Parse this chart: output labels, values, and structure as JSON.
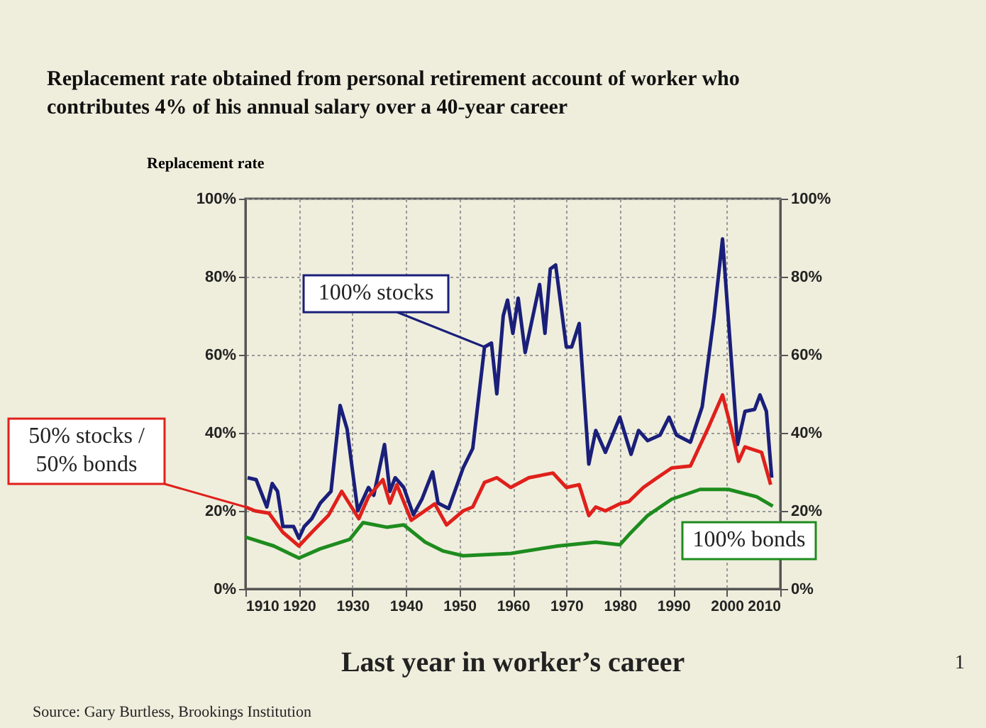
{
  "chart_data": {
    "type": "line",
    "title": "Replacement rate obtained from personal retirement account of worker who contributes 4% of his annual salary over a 40-year career",
    "ylabel": "Replacement rate",
    "xlabel": "Last year in worker’s career",
    "annotations": [
      "Source: Gary Burtless, Brookings Institution",
      "1"
    ],
    "xlim": [
      1910,
      2010
    ],
    "xticks": [
      1910,
      1920,
      1930,
      1940,
      1950,
      1960,
      1970,
      1980,
      1990,
      2000,
      2010
    ],
    "ylim": [
      0,
      100
    ],
    "yticks": [
      {
        "value": 0,
        "label": "0%"
      },
      {
        "value": 20,
        "label": "20%"
      },
      {
        "value": 40,
        "label": "40%"
      },
      {
        "value": 60,
        "label": "60%"
      },
      {
        "value": 80,
        "label": "80%"
      },
      {
        "value": 100,
        "label": "100%"
      }
    ],
    "y2lim": [
      0,
      100
    ],
    "y2ticks": [
      {
        "value": 0,
        "label": "0%"
      },
      {
        "value": 20,
        "label": "20%"
      },
      {
        "value": 40,
        "label": "40%"
      },
      {
        "value": 60,
        "label": "60%"
      },
      {
        "value": 80,
        "label": "80%"
      },
      {
        "value": 100,
        "label": "100%"
      }
    ],
    "grid": true,
    "line_style": "solid",
    "marker": "none",
    "series": [
      {
        "name": "100% stocks",
        "color": "#1a1f7a",
        "x": [
          1910.4,
          1912,
          1914,
          1915,
          1916,
          1917,
          1919,
          1920,
          1921,
          1922.4,
          1924,
          1926,
          1927.7,
          1929,
          1931,
          1933,
          1934,
          1936,
          1937,
          1938,
          1939.6,
          1941.4,
          1943,
          1945,
          1946,
          1948,
          1950.7,
          1952.5,
          1954.7,
          1956,
          1957,
          1958.2,
          1959,
          1960,
          1961,
          1962.3,
          1965,
          1966,
          1967,
          1968,
          1970,
          1971,
          1972.4,
          1974.2,
          1975.5,
          1977.3,
          1980,
          1982.1,
          1983.5,
          1985.2,
          1987.5,
          1989.2,
          1990.6,
          1993.2,
          1995.4,
          1997.6,
          1999.2,
          2002,
          2003.4,
          2005.2,
          2006.2,
          2007.4,
          2008.4
        ],
        "values": [
          28.5,
          28,
          21,
          27,
          25,
          16,
          16,
          13,
          16,
          18,
          22,
          25,
          47,
          41,
          20,
          26,
          24,
          37,
          25,
          28.5,
          26,
          19,
          23,
          30,
          22,
          20.6,
          31,
          36,
          62,
          63,
          50,
          70,
          74,
          65.5,
          74.5,
          60.6,
          78,
          65.5,
          82,
          83,
          62,
          62,
          68,
          32,
          40.6,
          35,
          44,
          34.5,
          40.6,
          38,
          39.4,
          44,
          39.4,
          37.6,
          46.7,
          69.7,
          89.7,
          37,
          45.5,
          46,
          49.7,
          45.5,
          28.5
        ]
      },
      {
        "name": "50% stocks / 50% bonds",
        "color": "#e0201b",
        "x": [
          1910,
          1911.8,
          1914.4,
          1917,
          1920,
          1922.4,
          1925.5,
          1928,
          1931.2,
          1933,
          1935.7,
          1937,
          1938.3,
          1941,
          1945.4,
          1947.6,
          1950.7,
          1952.5,
          1954.7,
          1957,
          1959.6,
          1963,
          1967.5,
          1970,
          1972.4,
          1974.2,
          1975.5,
          1977.3,
          1980,
          1981.7,
          1984.4,
          1987,
          1989.7,
          1993.2,
          1996.7,
          1999.2,
          2000.7,
          2002.2,
          2003.4,
          2006.5,
          2008.2
        ],
        "values": [
          21,
          20,
          19.4,
          14.5,
          11,
          14.5,
          18.8,
          25,
          18,
          23.6,
          28,
          22,
          26.7,
          17.6,
          21.8,
          16.4,
          20,
          21,
          27.3,
          28.5,
          26,
          28.5,
          29.7,
          26,
          26.7,
          18.8,
          21,
          20,
          21.8,
          22.4,
          26,
          28.5,
          31,
          31.5,
          41.8,
          49.7,
          41.8,
          32.7,
          36.4,
          35,
          26.7
        ]
      },
      {
        "name": "100% bonds",
        "color": "#1e8c1e",
        "x": [
          1910,
          1915.3,
          1920,
          1924,
          1929.5,
          1932,
          1936.5,
          1939.6,
          1943.6,
          1947,
          1950.7,
          1959.6,
          1968.4,
          1975.5,
          1980,
          1981.7,
          1985.2,
          1989.7,
          1995,
          2000.3,
          2005.6,
          2008.6
        ],
        "values": [
          13.3,
          11,
          7.9,
          10.3,
          12.7,
          17,
          15.8,
          16.4,
          12,
          9.7,
          8.5,
          9.1,
          11,
          12,
          11.3,
          13.9,
          18.8,
          23,
          25.5,
          25.5,
          23.6,
          21.2
        ]
      }
    ]
  }
}
